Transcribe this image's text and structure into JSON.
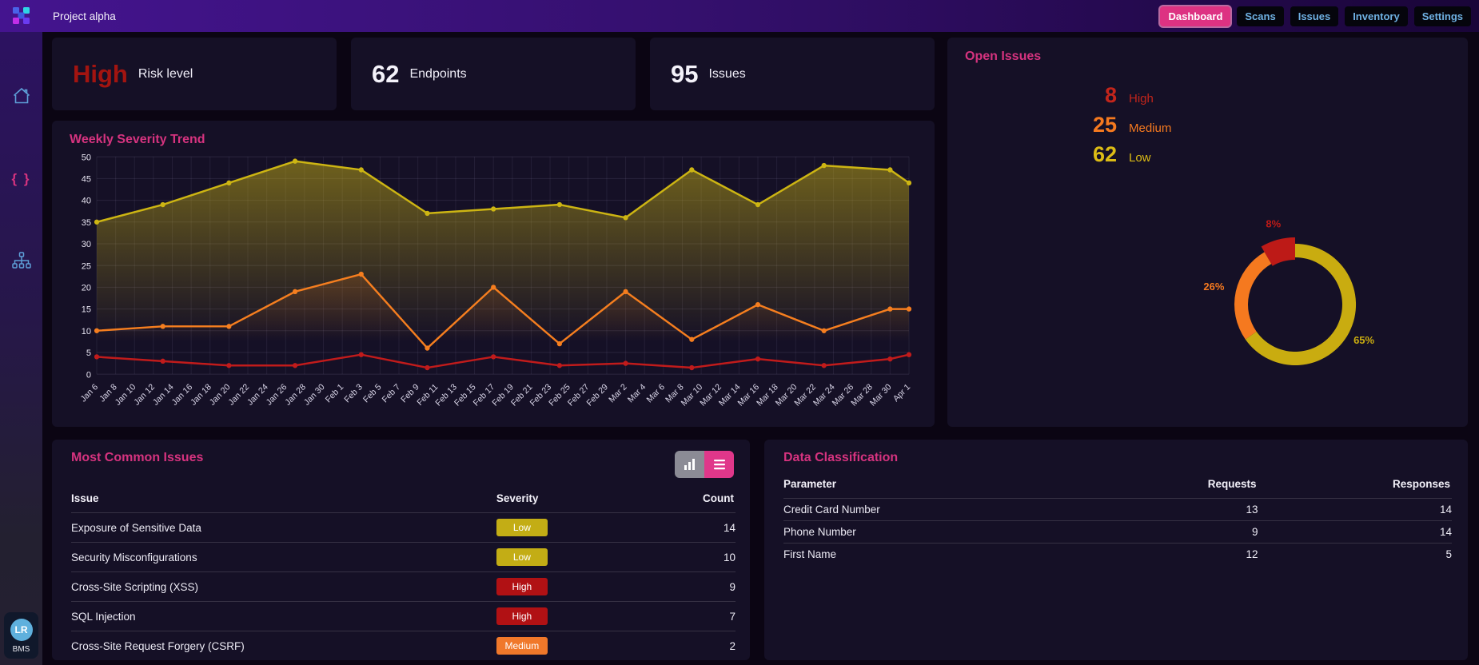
{
  "navbar": {
    "title": "Project alpha",
    "tabs": [
      {
        "label": "Dashboard",
        "active": true
      },
      {
        "label": "Scans",
        "active": false
      },
      {
        "label": "Issues",
        "active": false
      },
      {
        "label": "Inventory",
        "active": false
      },
      {
        "label": "Settings",
        "active": false
      }
    ]
  },
  "sidebar": {
    "api_glyph": "{ }",
    "icons": [
      "home-icon",
      "api-braces-icon",
      "network-icon"
    ],
    "user": {
      "initials": "LR",
      "org": "BMS"
    }
  },
  "stat_cards": [
    {
      "value": "High",
      "label": "Risk level",
      "value_color": "#a31410"
    },
    {
      "value": "62",
      "label": "Endpoints",
      "value_color": "#f4f2fa"
    },
    {
      "value": "95",
      "label": "Issues",
      "value_color": "#f4f2fa"
    }
  ],
  "open_issues": {
    "title": "Open Issues",
    "rows": [
      {
        "count": "8",
        "label": "High",
        "color": "#c3251b"
      },
      {
        "count": "25",
        "label": "Medium",
        "color": "#f5791f"
      },
      {
        "count": "62",
        "label": "Low",
        "color": "#dcbc15"
      }
    ]
  },
  "trend": {
    "title": "Weekly Severity Trend"
  },
  "most_common": {
    "title": "Most Common Issues",
    "columns": [
      "Issue",
      "Severity",
      "Count"
    ],
    "rows": [
      {
        "issue": "Exposure of Sensitive Data",
        "severity": "Low",
        "count": "14"
      },
      {
        "issue": "Security Misconfigurations",
        "severity": "Low",
        "count": "10"
      },
      {
        "issue": "Cross-Site Scripting (XSS)",
        "severity": "High",
        "count": "9"
      },
      {
        "issue": "SQL Injection",
        "severity": "High",
        "count": "7"
      },
      {
        "issue": "Cross-Site Request Forgery (CSRF)",
        "severity": "Medium",
        "count": "2"
      }
    ]
  },
  "data_classification": {
    "title": "Data Classification",
    "columns": [
      "Parameter",
      "Requests",
      "Responses"
    ],
    "rows": [
      {
        "parameter": "Credit Card Number",
        "requests": "13",
        "responses": "14"
      },
      {
        "parameter": "Phone Number",
        "requests": "9",
        "responses": "14"
      },
      {
        "parameter": "First Name",
        "requests": "12",
        "responses": "5"
      }
    ]
  },
  "severity_colors": {
    "High": "#b11114",
    "Medium": "#f0782a",
    "Low": "#c3ad15"
  },
  "chart_data": [
    {
      "id": "weekly_severity_trend",
      "type": "line",
      "title": "Weekly Severity Trend",
      "xlabel": "",
      "ylabel": "",
      "ylim": [
        0,
        50
      ],
      "ytick_step": 5,
      "grid": true,
      "legend_position": "none",
      "x_labels": [
        "Jan 6",
        "Jan 8",
        "Jan 10",
        "Jan 12",
        "Jan 14",
        "Jan 16",
        "Jan 18",
        "Jan 20",
        "Jan 22",
        "Jan 24",
        "Jan 26",
        "Jan 28",
        "Jan 30",
        "Feb 1",
        "Feb 3",
        "Feb 5",
        "Feb 7",
        "Feb 9",
        "Feb 11",
        "Feb 13",
        "Feb 15",
        "Feb 17",
        "Feb 19",
        "Feb 21",
        "Feb 23",
        "Feb 25",
        "Feb 27",
        "Feb 29",
        "Mar 2",
        "Mar 4",
        "Mar 6",
        "Mar 8",
        "Mar 10",
        "Mar 12",
        "Mar 14",
        "Mar 16",
        "Mar 18",
        "Mar 20",
        "Mar 22",
        "Mar 24",
        "Mar 26",
        "Mar 28",
        "Mar 30",
        "Apr 1"
      ],
      "x_range_days": 86,
      "series": [
        {
          "name": "Low",
          "color": "#cdb513",
          "x_days": [
            0,
            7,
            14,
            21,
            28,
            35,
            42,
            49,
            56,
            63,
            70,
            77,
            84,
            86
          ],
          "values": [
            35,
            39,
            44,
            49,
            47,
            37,
            38,
            39,
            36,
            47,
            39,
            48,
            47,
            44
          ]
        },
        {
          "name": "Medium",
          "color": "#f57e1f",
          "x_days": [
            0,
            7,
            14,
            21,
            28,
            35,
            42,
            49,
            56,
            63,
            70,
            77,
            84,
            86
          ],
          "values": [
            10,
            11,
            11,
            19,
            23,
            6,
            20,
            7,
            19,
            8,
            16,
            10,
            15,
            15
          ]
        },
        {
          "name": "High",
          "color": "#c11b1b",
          "x_days": [
            0,
            7,
            14,
            21,
            28,
            35,
            42,
            49,
            56,
            63,
            70,
            77,
            84,
            86
          ],
          "values": [
            4,
            3,
            2,
            2,
            4.5,
            1.5,
            4,
            2,
            2.5,
            1.5,
            3.5,
            2,
            3.5,
            4.5
          ]
        }
      ]
    },
    {
      "id": "open_issues_donut",
      "type": "pie",
      "labels": [
        "High",
        "Medium",
        "Low"
      ],
      "values": [
        8,
        25,
        62
      ],
      "pct_labels": [
        "8%",
        "26%",
        "65%"
      ],
      "colors": [
        "#bd1a17",
        "#f5791f",
        "#c9ac10"
      ],
      "direction": "counterclockwise",
      "start": "top",
      "explode_index": 0
    }
  ]
}
